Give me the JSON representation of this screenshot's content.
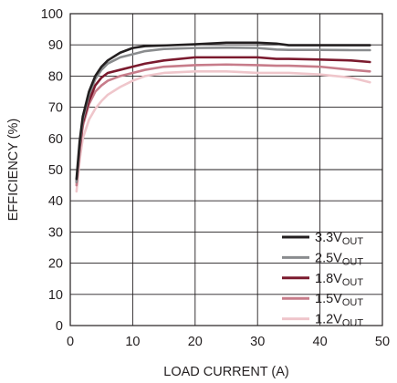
{
  "chart_data": {
    "type": "line",
    "title": "",
    "xlabel": "LOAD CURRENT (A)",
    "ylabel": "EFFICIENCY (%)",
    "xlim": [
      0,
      50
    ],
    "ylim": [
      0,
      100
    ],
    "xticks": [
      0,
      10,
      20,
      30,
      40,
      50
    ],
    "yticks": [
      0,
      10,
      20,
      30,
      40,
      50,
      60,
      70,
      80,
      90,
      100
    ],
    "grid": true,
    "legend_position": "bottom-right",
    "series": [
      {
        "name": "3.3V",
        "name_subscript": "OUT",
        "color": "#231f20",
        "x": [
          1,
          1.5,
          2,
          3,
          4,
          5,
          6,
          8,
          10,
          12,
          15,
          20,
          25,
          30,
          33,
          35,
          40,
          45,
          48
        ],
        "y": [
          47,
          59,
          67,
          75,
          80,
          83,
          85,
          87.5,
          89,
          89.6,
          89.8,
          90.2,
          90.7,
          90.7,
          90.4,
          89.9,
          89.9,
          89.9,
          89.9
        ]
      },
      {
        "name": "2.5V",
        "name_subscript": "OUT",
        "color": "#8a8c8e",
        "x": [
          1,
          1.5,
          2,
          3,
          4,
          5,
          6,
          8,
          10,
          12,
          15,
          20,
          25,
          30,
          33,
          35,
          40,
          45,
          48
        ],
        "y": [
          46,
          58,
          66,
          74,
          79,
          82,
          84,
          86,
          87,
          88,
          88.7,
          89,
          89.1,
          89,
          88.5,
          88.4,
          88.4,
          88.3,
          88.3
        ]
      },
      {
        "name": "1.8V",
        "name_subscript": "OUT",
        "color": "#7b1a2e",
        "x": [
          1,
          1.5,
          2,
          3,
          4,
          5,
          6,
          8,
          10,
          12,
          15,
          20,
          25,
          30,
          33,
          35,
          40,
          45,
          48
        ],
        "y": [
          46,
          57,
          65,
          72,
          77,
          79.5,
          81,
          82,
          83,
          84,
          85,
          86,
          86,
          86,
          85.5,
          85.5,
          85.3,
          85,
          84.5
        ]
      },
      {
        "name": "1.5V",
        "name_subscript": "OUT",
        "color": "#c77c8a",
        "x": [
          1,
          1.5,
          2,
          3,
          4,
          5,
          6,
          8,
          10,
          12,
          15,
          20,
          25,
          30,
          33,
          35,
          40,
          45,
          48
        ],
        "y": [
          45,
          56,
          64,
          71,
          75,
          77,
          78.5,
          80,
          81,
          82,
          83,
          83.5,
          83.7,
          83.5,
          83.3,
          83.3,
          83,
          82,
          81.5
        ]
      },
      {
        "name": "1.2V",
        "name_subscript": "OUT",
        "color": "#efc6cb",
        "x": [
          1,
          1.5,
          2,
          3,
          4,
          5,
          6,
          8,
          10,
          12,
          15,
          20,
          25,
          30,
          33,
          35,
          40,
          45,
          48
        ],
        "y": [
          43,
          53,
          60,
          66,
          69.5,
          72,
          74,
          76.5,
          78.5,
          80,
          81,
          81.5,
          81.5,
          81,
          81,
          81,
          80.5,
          79.5,
          78
        ]
      }
    ]
  }
}
